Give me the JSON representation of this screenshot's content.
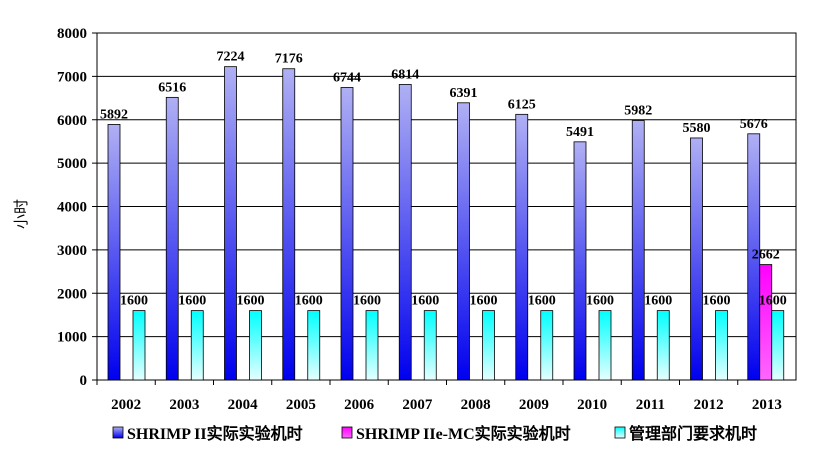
{
  "chart_data": {
    "type": "bar",
    "ylabel": "小时",
    "xlabel": "",
    "ylim": [
      0,
      8000
    ],
    "y_ticks": [
      0,
      1000,
      2000,
      3000,
      4000,
      5000,
      6000,
      7000,
      8000
    ],
    "grid": "horizontal",
    "legend_position": "bottom",
    "categories": [
      "2002",
      "2003",
      "2004",
      "2005",
      "2006",
      "2007",
      "2008",
      "2009",
      "2010",
      "2011",
      "2012",
      "2013"
    ],
    "series": [
      {
        "name": "SHRIMP II实际实验机时",
        "color": "#6666ff",
        "values": [
          5892,
          6516,
          7224,
          7176,
          6744,
          6814,
          6391,
          6125,
          5491,
          5982,
          5580,
          5676
        ]
      },
      {
        "name": "SHRIMP IIe-MC实际实验机时",
        "color": "#ff00ff",
        "values": [
          null,
          null,
          null,
          null,
          null,
          null,
          null,
          null,
          null,
          null,
          null,
          2662
        ]
      },
      {
        "name": "管理部门要求机时",
        "color": "#33ffff",
        "values": [
          1600,
          1600,
          1600,
          1600,
          1600,
          1600,
          1600,
          1600,
          1600,
          1600,
          1600,
          1600
        ]
      }
    ]
  }
}
